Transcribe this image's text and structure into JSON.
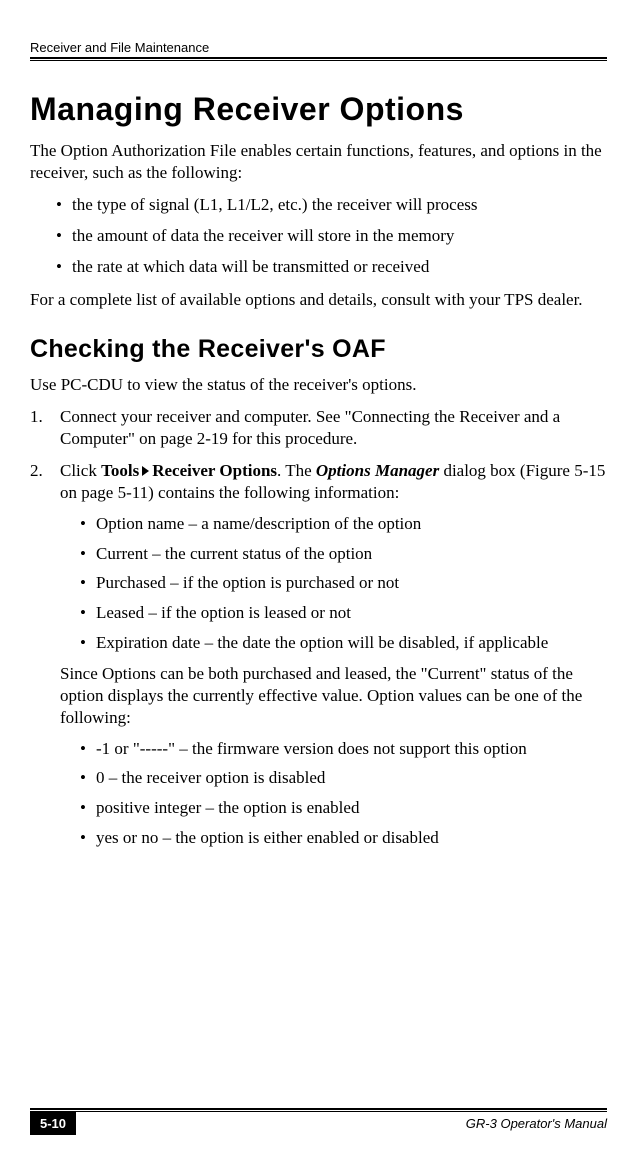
{
  "header": {
    "left": "Receiver and File Maintenance",
    "right": ""
  },
  "h1": "Managing Receiver Options",
  "intro": "The Option Authorization File enables certain functions, features, and options in the receiver, such as the following:",
  "intro_bullets": [
    "the type of signal (L1, L1/L2, etc.) the receiver will process",
    "the amount of data the receiver will store in the memory",
    "the rate at which data will be transmitted or received"
  ],
  "intro_outro": "For a complete list of available options and details, consult with your TPS dealer.",
  "h2": "Checking the Receiver's OAF",
  "h2_intro": "Use PC-CDU to view the status of the receiver's options.",
  "steps": {
    "step1": {
      "num": "1.",
      "text": "Connect your receiver and computer. See \"Connecting the Receiver and a Computer\" on page 2-19 for this procedure."
    },
    "step2": {
      "num": "2.",
      "pre": "Click ",
      "bold1": "Tools",
      "bold2": "Receiver Options",
      "mid": ". The ",
      "italic": "Options Manager",
      "post": " dialog box (Figure 5-15 on page 5-11) contains the following information:",
      "bullets": [
        "Option name – a name/description of the option",
        "Current – the current status of the option",
        "Purchased – if the option is purchased or not",
        "Leased – if the option is leased or not",
        "Expiration date – the date the option will be disabled, if applicable"
      ],
      "since_text": "Since Options can be both purchased and leased, the \"Current\" status of the option displays the currently effective value. Option values can be one of the following:",
      "value_bullets": [
        "-1 or \"-----\" – the firmware version does not support this option",
        "0 – the receiver option is disabled",
        "positive integer – the option is enabled",
        "yes or no – the option is either enabled or disabled"
      ]
    }
  },
  "footer": {
    "page_number": "5-10",
    "right": "GR-3 Operator's Manual"
  }
}
